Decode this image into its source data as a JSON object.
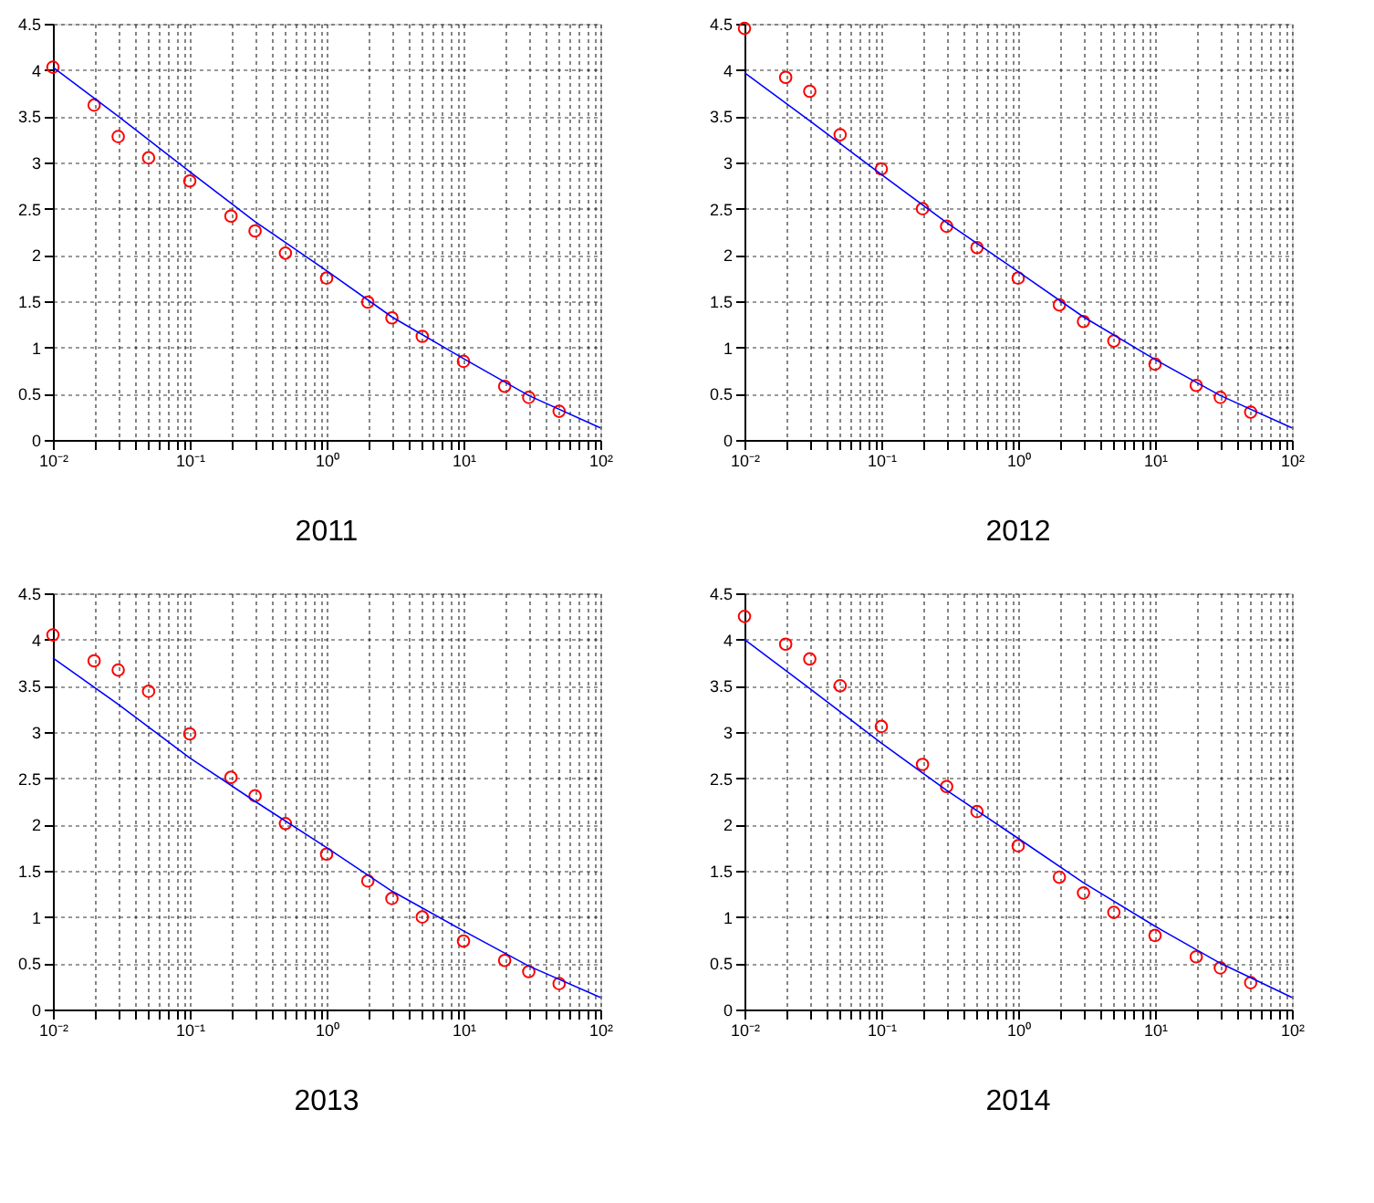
{
  "chart_data": [
    {
      "type": "scatter",
      "title": "2011",
      "log": "x",
      "grid": true,
      "xlim": [
        0.01,
        100
      ],
      "ylim": [
        0,
        4.5
      ],
      "xticks": [
        {
          "value": 0.01,
          "label": "10⁻²"
        },
        {
          "value": 0.02,
          "label": null
        },
        {
          "value": 0.03,
          "label": null
        },
        {
          "value": 0.04,
          "label": null
        },
        {
          "value": 0.05,
          "label": null
        },
        {
          "value": 0.06,
          "label": null
        },
        {
          "value": 0.07,
          "label": null
        },
        {
          "value": 0.08,
          "label": null
        },
        {
          "value": 0.09,
          "label": null
        },
        {
          "value": 0.1,
          "label": "10⁻¹"
        },
        {
          "value": 0.2,
          "label": null
        },
        {
          "value": 0.3,
          "label": null
        },
        {
          "value": 0.4,
          "label": null
        },
        {
          "value": 0.5,
          "label": null
        },
        {
          "value": 0.6,
          "label": null
        },
        {
          "value": 0.7,
          "label": null
        },
        {
          "value": 0.8,
          "label": null
        },
        {
          "value": 0.9,
          "label": null
        },
        {
          "value": 1,
          "label": "10⁰"
        },
        {
          "value": 2,
          "label": null
        },
        {
          "value": 3,
          "label": null
        },
        {
          "value": 4,
          "label": null
        },
        {
          "value": 5,
          "label": null
        },
        {
          "value": 6,
          "label": null
        },
        {
          "value": 7,
          "label": null
        },
        {
          "value": 8,
          "label": null
        },
        {
          "value": 9,
          "label": null
        },
        {
          "value": 10,
          "label": "10¹"
        },
        {
          "value": 20,
          "label": null
        },
        {
          "value": 30,
          "label": null
        },
        {
          "value": 40,
          "label": null
        },
        {
          "value": 50,
          "label": null
        },
        {
          "value": 60,
          "label": null
        },
        {
          "value": 70,
          "label": null
        },
        {
          "value": 80,
          "label": null
        },
        {
          "value": 90,
          "label": null
        },
        {
          "value": 100,
          "label": "10²"
        }
      ],
      "yticks": [
        0,
        0.5,
        1,
        1.5,
        2,
        2.5,
        3,
        3.5,
        4,
        4.5
      ],
      "x": [
        0.01,
        0.02,
        0.03,
        0.05,
        0.1,
        0.2,
        0.3,
        0.5,
        1,
        2,
        3,
        5,
        10,
        20,
        30,
        50
      ],
      "series": [
        {
          "type": "scatter",
          "marker": "circle",
          "color": "#ff0000",
          "values": [
            4.03,
            3.62,
            3.28,
            3.05,
            2.8,
            2.42,
            2.26,
            2.02,
            1.75,
            1.49,
            1.32,
            1.12,
            0.85,
            0.58,
            0.46,
            0.31
          ]
        },
        {
          "type": "line",
          "color": "#0000ff",
          "x": [
            0.01,
            0.03,
            0.1,
            0.3,
            1,
            3,
            10,
            30,
            100
          ],
          "values": [
            4.03,
            3.5,
            2.9,
            2.36,
            1.83,
            1.33,
            0.88,
            0.48,
            0.13
          ]
        }
      ]
    },
    {
      "type": "scatter",
      "title": "2012",
      "log": "x",
      "grid": true,
      "xlim": [
        0.01,
        100
      ],
      "ylim": [
        0,
        4.5
      ],
      "xticks": [
        {
          "value": 0.01,
          "label": "10⁻²"
        },
        {
          "value": 0.02,
          "label": null
        },
        {
          "value": 0.03,
          "label": null
        },
        {
          "value": 0.04,
          "label": null
        },
        {
          "value": 0.05,
          "label": null
        },
        {
          "value": 0.06,
          "label": null
        },
        {
          "value": 0.07,
          "label": null
        },
        {
          "value": 0.08,
          "label": null
        },
        {
          "value": 0.09,
          "label": null
        },
        {
          "value": 0.1,
          "label": "10⁻¹"
        },
        {
          "value": 0.2,
          "label": null
        },
        {
          "value": 0.3,
          "label": null
        },
        {
          "value": 0.4,
          "label": null
        },
        {
          "value": 0.5,
          "label": null
        },
        {
          "value": 0.6,
          "label": null
        },
        {
          "value": 0.7,
          "label": null
        },
        {
          "value": 0.8,
          "label": null
        },
        {
          "value": 0.9,
          "label": null
        },
        {
          "value": 1,
          "label": "10⁰"
        },
        {
          "value": 2,
          "label": null
        },
        {
          "value": 3,
          "label": null
        },
        {
          "value": 4,
          "label": null
        },
        {
          "value": 5,
          "label": null
        },
        {
          "value": 6,
          "label": null
        },
        {
          "value": 7,
          "label": null
        },
        {
          "value": 8,
          "label": null
        },
        {
          "value": 9,
          "label": null
        },
        {
          "value": 10,
          "label": "10¹"
        },
        {
          "value": 20,
          "label": null
        },
        {
          "value": 30,
          "label": null
        },
        {
          "value": 40,
          "label": null
        },
        {
          "value": 50,
          "label": null
        },
        {
          "value": 60,
          "label": null
        },
        {
          "value": 70,
          "label": null
        },
        {
          "value": 80,
          "label": null
        },
        {
          "value": 90,
          "label": null
        },
        {
          "value": 100,
          "label": "10²"
        }
      ],
      "yticks": [
        0,
        0.5,
        1,
        1.5,
        2,
        2.5,
        3,
        3.5,
        4,
        4.5
      ],
      "x": [
        0.01,
        0.02,
        0.03,
        0.05,
        0.1,
        0.2,
        0.3,
        0.5,
        1,
        2,
        3,
        5,
        10,
        20,
        30,
        50
      ],
      "series": [
        {
          "type": "scatter",
          "marker": "circle",
          "color": "#ff0000",
          "values": [
            4.45,
            3.92,
            3.77,
            3.3,
            2.93,
            2.5,
            2.31,
            2.08,
            1.75,
            1.46,
            1.28,
            1.07,
            0.82,
            0.59,
            0.46,
            0.3
          ]
        },
        {
          "type": "line",
          "color": "#0000ff",
          "x": [
            0.01,
            0.03,
            0.1,
            0.3,
            1,
            3,
            10,
            30,
            100
          ],
          "values": [
            3.97,
            3.45,
            2.87,
            2.35,
            1.82,
            1.33,
            0.87,
            0.48,
            0.13
          ]
        }
      ]
    },
    {
      "type": "scatter",
      "title": "2013",
      "log": "x",
      "grid": true,
      "xlim": [
        0.01,
        100
      ],
      "ylim": [
        0,
        4.5
      ],
      "xticks": [
        {
          "value": 0.01,
          "label": "10⁻²"
        },
        {
          "value": 0.02,
          "label": null
        },
        {
          "value": 0.03,
          "label": null
        },
        {
          "value": 0.04,
          "label": null
        },
        {
          "value": 0.05,
          "label": null
        },
        {
          "value": 0.06,
          "label": null
        },
        {
          "value": 0.07,
          "label": null
        },
        {
          "value": 0.08,
          "label": null
        },
        {
          "value": 0.09,
          "label": null
        },
        {
          "value": 0.1,
          "label": "10⁻¹"
        },
        {
          "value": 0.2,
          "label": null
        },
        {
          "value": 0.3,
          "label": null
        },
        {
          "value": 0.4,
          "label": null
        },
        {
          "value": 0.5,
          "label": null
        },
        {
          "value": 0.6,
          "label": null
        },
        {
          "value": 0.7,
          "label": null
        },
        {
          "value": 0.8,
          "label": null
        },
        {
          "value": 0.9,
          "label": null
        },
        {
          "value": 1,
          "label": "10⁰"
        },
        {
          "value": 2,
          "label": null
        },
        {
          "value": 3,
          "label": null
        },
        {
          "value": 4,
          "label": null
        },
        {
          "value": 5,
          "label": null
        },
        {
          "value": 6,
          "label": null
        },
        {
          "value": 7,
          "label": null
        },
        {
          "value": 8,
          "label": null
        },
        {
          "value": 9,
          "label": null
        },
        {
          "value": 10,
          "label": "10¹"
        },
        {
          "value": 20,
          "label": null
        },
        {
          "value": 30,
          "label": null
        },
        {
          "value": 40,
          "label": null
        },
        {
          "value": 50,
          "label": null
        },
        {
          "value": 60,
          "label": null
        },
        {
          "value": 70,
          "label": null
        },
        {
          "value": 80,
          "label": null
        },
        {
          "value": 90,
          "label": null
        },
        {
          "value": 100,
          "label": "10²"
        }
      ],
      "yticks": [
        0,
        0.5,
        1,
        1.5,
        2,
        2.5,
        3,
        3.5,
        4,
        4.5
      ],
      "x": [
        0.01,
        0.02,
        0.03,
        0.05,
        0.1,
        0.2,
        0.3,
        0.5,
        1,
        2,
        3,
        5,
        10,
        20,
        30,
        50
      ],
      "series": [
        {
          "type": "scatter",
          "marker": "circle",
          "color": "#ff0000",
          "values": [
            4.05,
            3.77,
            3.67,
            3.44,
            2.98,
            2.51,
            2.31,
            2.01,
            1.68,
            1.39,
            1.2,
            1.0,
            0.74,
            0.53,
            0.41,
            0.28
          ]
        },
        {
          "type": "line",
          "color": "#0000ff",
          "x": [
            0.01,
            0.03,
            0.1,
            0.3,
            1,
            3,
            10,
            30,
            100
          ],
          "values": [
            3.8,
            3.3,
            2.72,
            2.25,
            1.75,
            1.28,
            0.85,
            0.47,
            0.13
          ]
        }
      ]
    },
    {
      "type": "scatter",
      "title": "2014",
      "log": "x",
      "grid": true,
      "xlim": [
        0.01,
        100
      ],
      "ylim": [
        0,
        4.5
      ],
      "xticks": [
        {
          "value": 0.01,
          "label": "10⁻²"
        },
        {
          "value": 0.02,
          "label": null
        },
        {
          "value": 0.03,
          "label": null
        },
        {
          "value": 0.04,
          "label": null
        },
        {
          "value": 0.05,
          "label": null
        },
        {
          "value": 0.06,
          "label": null
        },
        {
          "value": 0.07,
          "label": null
        },
        {
          "value": 0.08,
          "label": null
        },
        {
          "value": 0.09,
          "label": null
        },
        {
          "value": 0.1,
          "label": "10⁻¹"
        },
        {
          "value": 0.2,
          "label": null
        },
        {
          "value": 0.3,
          "label": null
        },
        {
          "value": 0.4,
          "label": null
        },
        {
          "value": 0.5,
          "label": null
        },
        {
          "value": 0.6,
          "label": null
        },
        {
          "value": 0.7,
          "label": null
        },
        {
          "value": 0.8,
          "label": null
        },
        {
          "value": 0.9,
          "label": null
        },
        {
          "value": 1,
          "label": "10⁰"
        },
        {
          "value": 2,
          "label": null
        },
        {
          "value": 3,
          "label": null
        },
        {
          "value": 4,
          "label": null
        },
        {
          "value": 5,
          "label": null
        },
        {
          "value": 6,
          "label": null
        },
        {
          "value": 7,
          "label": null
        },
        {
          "value": 8,
          "label": null
        },
        {
          "value": 9,
          "label": null
        },
        {
          "value": 10,
          "label": "10¹"
        },
        {
          "value": 20,
          "label": null
        },
        {
          "value": 30,
          "label": null
        },
        {
          "value": 40,
          "label": null
        },
        {
          "value": 50,
          "label": null
        },
        {
          "value": 60,
          "label": null
        },
        {
          "value": 70,
          "label": null
        },
        {
          "value": 80,
          "label": null
        },
        {
          "value": 90,
          "label": null
        },
        {
          "value": 100,
          "label": "10²"
        }
      ],
      "yticks": [
        0,
        0.5,
        1,
        1.5,
        2,
        2.5,
        3,
        3.5,
        4,
        4.5
      ],
      "x": [
        0.01,
        0.02,
        0.03,
        0.05,
        0.1,
        0.2,
        0.3,
        0.5,
        1,
        2,
        3,
        5,
        10,
        20,
        30,
        50
      ],
      "series": [
        {
          "type": "scatter",
          "marker": "circle",
          "color": "#ff0000",
          "values": [
            4.25,
            3.95,
            3.79,
            3.5,
            3.06,
            2.65,
            2.41,
            2.14,
            1.77,
            1.43,
            1.26,
            1.05,
            0.8,
            0.57,
            0.45,
            0.29
          ]
        },
        {
          "type": "line",
          "color": "#0000ff",
          "x": [
            0.01,
            0.03,
            0.1,
            0.3,
            1,
            3,
            10,
            30,
            100
          ],
          "values": [
            4.0,
            3.47,
            2.88,
            2.37,
            1.85,
            1.37,
            0.9,
            0.5,
            0.13
          ]
        }
      ]
    }
  ]
}
